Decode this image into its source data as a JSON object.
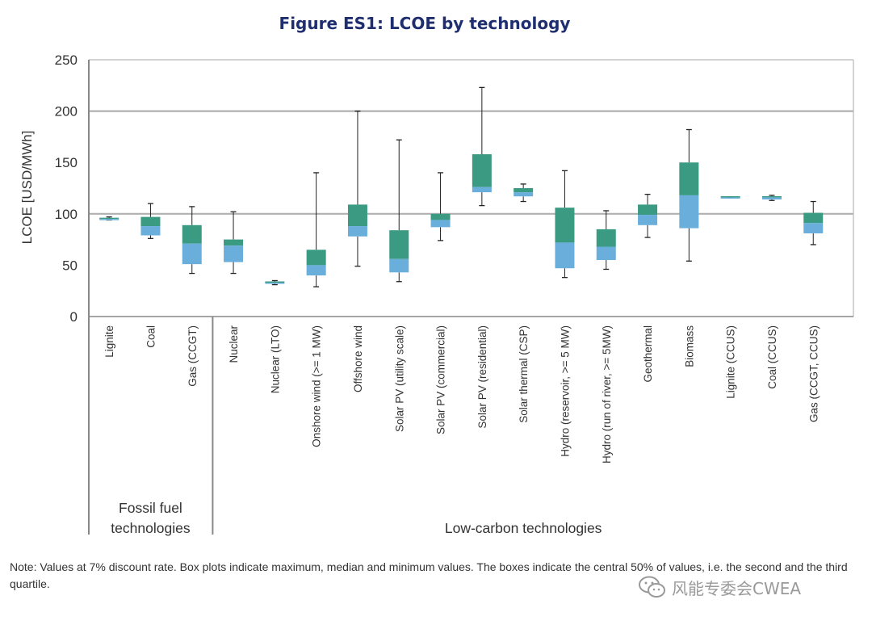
{
  "chart_data": {
    "type": "boxplot",
    "title": "Figure ES1: LCOE by technology",
    "ylabel": "LCOE [USD/MWh]",
    "ylim": [
      0,
      250
    ],
    "yticks": [
      0,
      50,
      100,
      150,
      200,
      250
    ],
    "grid": "horizontal major lines at 100 and 200",
    "colors": {
      "upper_box": "#3a9a82",
      "lower_box": "#6aaedc",
      "whisker": "#222222",
      "axis": "#888888"
    },
    "groups": [
      {
        "label": "Fossil fuel\ntechnologies",
        "categories": [
          "Lignite",
          "Coal",
          "Gas (CCGT)"
        ]
      },
      {
        "label": "Low-carbon technologies",
        "categories": [
          "Nuclear",
          "Nuclear (LTO)",
          "Onshore wind (>= 1 MW)",
          "Offshore wind",
          "Solar PV (utility scale)",
          "Solar PV (commercial)",
          "Solar PV (residential)",
          "Solar thermal (CSP)",
          "Hydro (reservoir, >= 5 MW)",
          "Hydro (run of river, >= 5MW)",
          "Geothermal",
          "Biomass",
          "Lignite (CCUS)",
          "Coal (CCUS)",
          "Gas (CCGT, CCUS)"
        ]
      }
    ],
    "series": [
      {
        "category": "Lignite",
        "min": 94,
        "q1": 94,
        "median": 95,
        "q3": 96,
        "max": 97
      },
      {
        "category": "Coal",
        "min": 76,
        "q1": 79,
        "median": 88,
        "q3": 97,
        "max": 110
      },
      {
        "category": "Gas (CCGT)",
        "min": 42,
        "q1": 51,
        "median": 71,
        "q3": 89,
        "max": 107
      },
      {
        "category": "Nuclear",
        "min": 42,
        "q1": 53,
        "median": 69,
        "q3": 75,
        "max": 102
      },
      {
        "category": "Nuclear (LTO)",
        "min": 31,
        "q1": 32,
        "median": 33,
        "q3": 33,
        "max": 35
      },
      {
        "category": "Onshore wind (>= 1 MW)",
        "min": 29,
        "q1": 40,
        "median": 50,
        "q3": 65,
        "max": 140
      },
      {
        "category": "Offshore wind",
        "min": 49,
        "q1": 78,
        "median": 88,
        "q3": 109,
        "max": 200
      },
      {
        "category": "Solar PV (utility scale)",
        "min": 34,
        "q1": 43,
        "median": 56,
        "q3": 84,
        "max": 172
      },
      {
        "category": "Solar PV (commercial)",
        "min": 74,
        "q1": 87,
        "median": 94,
        "q3": 100,
        "max": 140
      },
      {
        "category": "Solar PV (residential)",
        "min": 108,
        "q1": 121,
        "median": 126,
        "q3": 158,
        "max": 223
      },
      {
        "category": "Solar thermal (CSP)",
        "min": 112,
        "q1": 117,
        "median": 121,
        "q3": 125,
        "max": 129
      },
      {
        "category": "Hydro (reservoir, >= 5 MW)",
        "min": 38,
        "q1": 47,
        "median": 72,
        "q3": 106,
        "max": 142
      },
      {
        "category": "Hydro (run of river, >= 5MW)",
        "min": 46,
        "q1": 55,
        "median": 68,
        "q3": 85,
        "max": 103
      },
      {
        "category": "Geothermal",
        "min": 77,
        "q1": 89,
        "median": 99,
        "q3": 109,
        "max": 119
      },
      {
        "category": "Biomass",
        "min": 54,
        "q1": 86,
        "median": 118,
        "q3": 150,
        "max": 182
      },
      {
        "category": "Lignite (CCUS)",
        "min": 116,
        "q1": 116,
        "median": 116,
        "q3": 116,
        "max": 116
      },
      {
        "category": "Coal (CCUS)",
        "min": 113,
        "q1": 114,
        "median": 116,
        "q3": 117,
        "max": 118
      },
      {
        "category": "Gas (CCGT, CCUS)",
        "min": 70,
        "q1": 81,
        "median": 91,
        "q3": 101,
        "max": 112
      }
    ]
  },
  "note": "Note: Values at 7% discount rate. Box plots indicate maximum, median and minimum values. The boxes indicate the central 50% of values, i.e. the second and the third quartile.",
  "watermark": {
    "text": "风能专委会CWEA",
    "icon": "wechat-icon"
  }
}
